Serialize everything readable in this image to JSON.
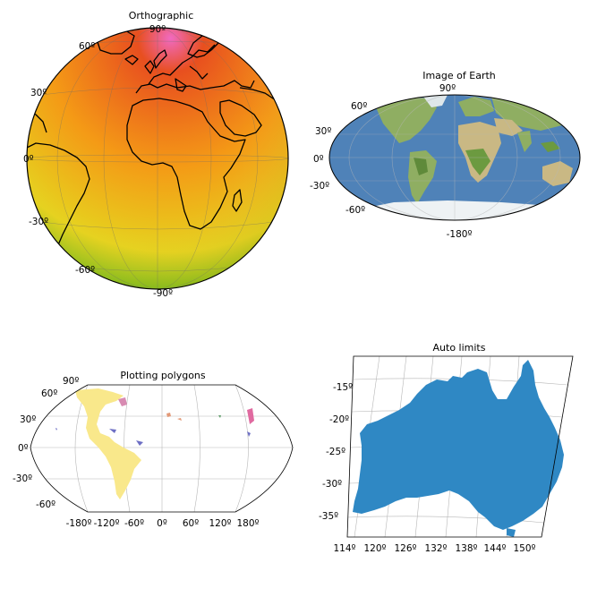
{
  "maps": [
    {
      "title": "Orthographic",
      "lat_labels": [
        "90º",
        "60º",
        "30º",
        "0º",
        "-30º",
        "-60º",
        "-90º"
      ]
    },
    {
      "title": "Image of Earth",
      "lat_labels": [
        "90º",
        "60º",
        "30º",
        "0º",
        "-30º",
        "-60º",
        "-180º"
      ]
    },
    {
      "title": "Plotting polygons",
      "lat_labels": [
        "90º",
        "60º",
        "30º",
        "0º",
        "-30º",
        "-60º"
      ],
      "lon_labels": [
        "-180º",
        "-120º",
        "-60º",
        "0º",
        "60º",
        "120º",
        "180º"
      ]
    },
    {
      "title": "Auto limits",
      "lat_labels": [
        "-15º",
        "-20º",
        "-25º",
        "-30º",
        "-35º"
      ],
      "lon_labels": [
        "114º",
        "120º",
        "126º",
        "132º",
        "138º",
        "144º",
        "150º"
      ]
    }
  ],
  "colors": {
    "ortho_pole": "#f06ac0",
    "ortho_high": "#e84f1f",
    "ortho_mid": "#f49a16",
    "ortho_low": "#e6d21e",
    "ortho_south": "#3db31a",
    "earth_ocean": "#4f82b8",
    "earth_land": "#8fae62",
    "polygon_fill": "#f9e88b",
    "australia_fill": "#2f88c4"
  }
}
